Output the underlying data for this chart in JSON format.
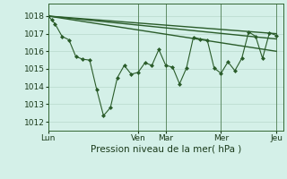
{
  "xlabel": "Pression niveau de la mer( hPa )",
  "bg_color": "#d4f0e8",
  "grid_color": "#b8d8cc",
  "line_color": "#2a5c2a",
  "ylim": [
    1011.5,
    1018.7
  ],
  "yticks": [
    1012,
    1013,
    1014,
    1015,
    1016,
    1017,
    1018
  ],
  "xtick_labels": [
    "Lun",
    "Ven",
    "Mar",
    "Mer",
    "Jeu"
  ],
  "xtick_positions": [
    0,
    13,
    17,
    25,
    33
  ],
  "xlim": [
    0,
    34
  ],
  "trend1_x": [
    0,
    33
  ],
  "trend1_y": [
    1018.0,
    1017.0
  ],
  "trend2_x": [
    0,
    33
  ],
  "trend2_y": [
    1018.0,
    1016.7
  ],
  "trend3_x": [
    0,
    33
  ],
  "trend3_y": [
    1018.0,
    1016.0
  ],
  "main_x": [
    0,
    0.5,
    1,
    2,
    3,
    4,
    5,
    6,
    7,
    8,
    9,
    10,
    11,
    12,
    13,
    14,
    15,
    16,
    17,
    18,
    19,
    20,
    21,
    22,
    23,
    24,
    25,
    26,
    27,
    28,
    29,
    30,
    31,
    32,
    33
  ],
  "main_y": [
    1018.0,
    1017.8,
    1017.55,
    1016.85,
    1016.65,
    1015.7,
    1015.55,
    1015.5,
    1013.85,
    1012.35,
    1012.8,
    1014.5,
    1015.2,
    1014.7,
    1014.8,
    1015.35,
    1015.2,
    1016.1,
    1015.2,
    1015.1,
    1014.15,
    1015.05,
    1016.8,
    1016.7,
    1016.65,
    1015.05,
    1014.75,
    1015.4,
    1014.9,
    1015.6,
    1017.1,
    1016.85,
    1015.6,
    1017.05,
    1016.9
  ]
}
